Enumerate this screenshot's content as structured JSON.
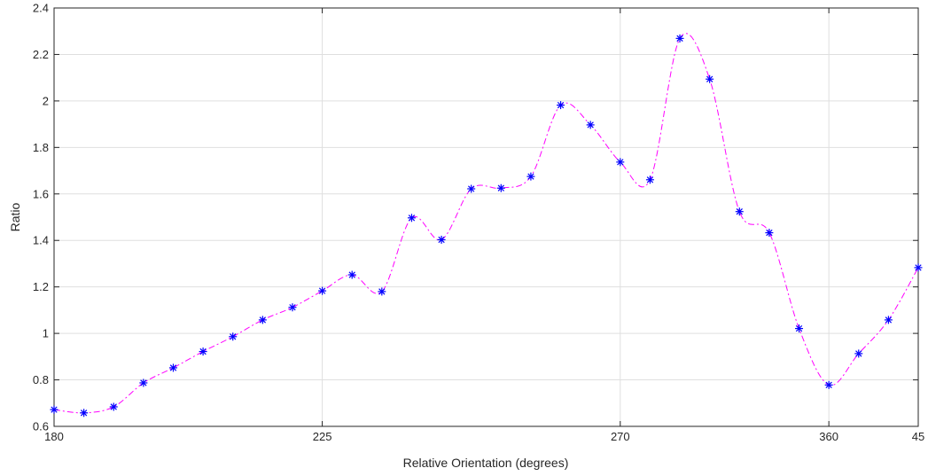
{
  "chart_data": {
    "type": "line",
    "title": "",
    "xlabel": "Relative Orientation (degrees)",
    "ylabel": "Ratio",
    "ylim": [
      0.6,
      2.4
    ],
    "yticks": [
      "0.6",
      "0.8",
      "1",
      "1.2",
      "1.4",
      "1.6",
      "1.8",
      "2",
      "2.2",
      "2.4"
    ],
    "xtick_labels": [
      "180",
      "225",
      "270",
      "360",
      "45"
    ],
    "grid": true,
    "line_style": "dash-dot smooth",
    "line_color": "#ff00ff",
    "marker": "asterisk",
    "marker_color": "#0000ff",
    "series": [
      {
        "values": [
          0.672,
          0.658,
          0.684,
          0.787,
          0.852,
          0.922,
          0.986,
          1.058,
          1.112,
          1.183,
          1.252,
          1.18,
          1.497,
          1.403,
          1.622,
          1.625,
          1.675,
          1.982,
          1.897,
          1.737,
          1.661,
          2.269,
          2.094,
          1.524,
          1.433,
          1.021,
          0.778,
          0.913,
          1.058,
          1.283
        ]
      }
    ]
  }
}
